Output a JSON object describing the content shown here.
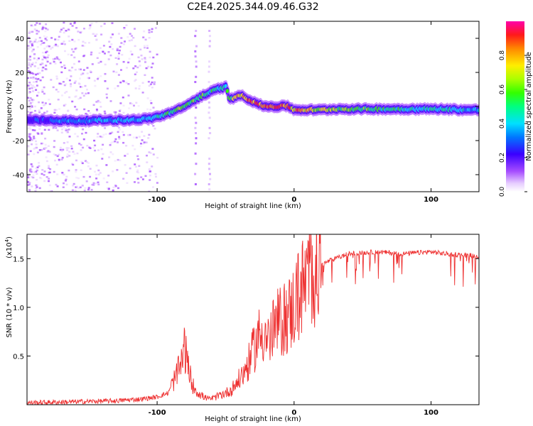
{
  "page_title": "C2E4.2025.344.09.46.G32",
  "chart_data": [
    {
      "id": "spectrogram",
      "type": "heatmap",
      "title": "C2E4.2025.344.09.46.G32",
      "xlabel": "Height of straight line (km)",
      "ylabel": "Frequency (Hz)",
      "xlim": [
        -195,
        135
      ],
      "ylim": [
        -50,
        50
      ],
      "xticks": [
        -100,
        0,
        100
      ],
      "xtick_labels": [
        "-100",
        "0",
        "100"
      ],
      "yticks": [
        -40,
        -20,
        0,
        20,
        40
      ],
      "ytick_labels": [
        "-40",
        "-20",
        "0",
        "20",
        "40"
      ],
      "colorbar": {
        "label": "Normalized spectral amplitude",
        "range": [
          0,
          1
        ],
        "ticks": [
          0.0,
          0.2,
          0.4,
          0.6,
          0.8
        ],
        "tick_labels": [
          "0.0",
          "0.2",
          "0.4",
          "0.6",
          "0.8"
        ]
      },
      "ridge": {
        "x": [
          -195,
          -180,
          -160,
          -140,
          -120,
          -105,
          -95,
          -85,
          -78,
          -72,
          -68,
          -62,
          -57,
          -52,
          -50,
          -47,
          -44,
          -40,
          -35,
          -30,
          -25,
          -20,
          -15,
          -10,
          -5,
          0,
          5,
          10,
          20,
          30,
          50,
          70,
          90,
          110,
          125,
          135
        ],
        "freq": [
          -8,
          -8,
          -8.5,
          -8,
          -8,
          -7,
          -5,
          -2,
          1,
          4,
          6,
          8,
          10,
          11,
          12,
          4,
          5,
          7,
          5,
          3,
          1,
          0,
          0,
          0,
          0.5,
          -2,
          -2,
          -2,
          -2,
          -1.5,
          -1.5,
          -1.5,
          -1.5,
          -1.5,
          -2,
          -2
        ],
        "amplitude": [
          0.3,
          0.35,
          0.38,
          0.4,
          0.42,
          0.45,
          0.5,
          0.6,
          0.65,
          0.62,
          0.6,
          0.55,
          0.52,
          0.5,
          0.5,
          0.62,
          0.7,
          0.8,
          0.85,
          0.9,
          0.95,
          0.97,
          0.97,
          0.95,
          0.9,
          0.85,
          0.8,
          0.75,
          0.7,
          0.65,
          0.6,
          0.55,
          0.5,
          0.48,
          0.45,
          0.42
        ]
      }
    },
    {
      "id": "snr",
      "type": "line",
      "xlabel": "Height of straight line (km)",
      "ylabel": "SNR (10 * v/v)",
      "y_multiplier": "(x10",
      "y_multiplier_exp": "4",
      "xlim": [
        -195,
        135
      ],
      "ylim": [
        0,
        1.75
      ],
      "xticks": [
        -100,
        0,
        100
      ],
      "xtick_labels": [
        "-100",
        "0",
        "100"
      ],
      "yticks": [
        0.5,
        1.0,
        1.5
      ],
      "ytick_labels": [
        "0.5",
        "1.0",
        "1.5"
      ],
      "line_color": "#ee3030",
      "series": [
        {
          "name": "SNR",
          "x": [
            -195,
            -160,
            -130,
            -110,
            -100,
            -92,
            -86,
            -82,
            -80,
            -77,
            -74,
            -70,
            -66,
            -62,
            -58,
            -54,
            -50,
            -46,
            -42,
            -38,
            -34,
            -30,
            -26,
            -22,
            -18,
            -14,
            -10,
            -6,
            -2,
            2,
            6,
            10,
            14,
            18,
            22,
            26,
            30,
            40,
            50,
            60,
            70,
            80,
            90,
            100,
            110,
            120,
            135
          ],
          "y": [
            0.02,
            0.03,
            0.04,
            0.06,
            0.08,
            0.12,
            0.3,
            0.42,
            0.6,
            0.35,
            0.2,
            0.12,
            0.08,
            0.06,
            0.07,
            0.1,
            0.12,
            0.15,
            0.22,
            0.3,
            0.4,
            0.55,
            0.7,
            0.75,
            0.65,
            0.8,
            0.85,
            0.9,
            0.95,
            1.1,
            1.2,
            1.3,
            1.38,
            1.42,
            1.45,
            1.48,
            1.5,
            1.55,
            1.56,
            1.57,
            1.56,
            1.55,
            1.56,
            1.57,
            1.55,
            1.54,
            1.53
          ]
        }
      ]
    }
  ]
}
